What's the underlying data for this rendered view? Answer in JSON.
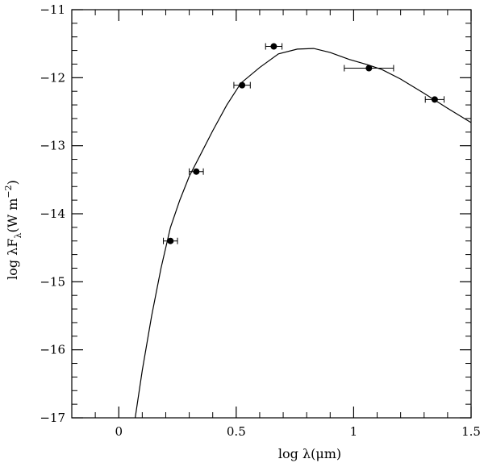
{
  "chart_data": {
    "type": "scatter",
    "xlabel": "log λ(μm)",
    "ylabel": "log λF",
    "ylabel_sub": "λ",
    "ylabel_unit": "(W m",
    "ylabel_exp": "−2",
    "ylabel_close": ")",
    "xlim": [
      -0.2,
      1.5
    ],
    "ylim": [
      -17,
      -11
    ],
    "x_ticks": [
      {
        "value": 0,
        "label": "0"
      },
      {
        "value": 0.5,
        "label": "0.5"
      },
      {
        "value": 1,
        "label": "1"
      },
      {
        "value": 1.5,
        "label": "1.5"
      }
    ],
    "x_minor_step": 0.1,
    "y_ticks": [
      {
        "value": -11,
        "label": "−11"
      },
      {
        "value": -12,
        "label": "−12"
      },
      {
        "value": -13,
        "label": "−13"
      },
      {
        "value": -14,
        "label": "−14"
      },
      {
        "value": -15,
        "label": "−15"
      },
      {
        "value": -16,
        "label": "−16"
      },
      {
        "value": -17,
        "label": "−17"
      }
    ],
    "y_minor_step": 0.2,
    "grid": false,
    "points": [
      {
        "x": 0.22,
        "y": -14.4,
        "xerr": 0.03
      },
      {
        "x": 0.33,
        "y": -13.38,
        "xerr": 0.03
      },
      {
        "x": 0.525,
        "y": -12.11,
        "xerr": 0.035
      },
      {
        "x": 0.66,
        "y": -11.54,
        "xerr": 0.035
      },
      {
        "x": 1.065,
        "y": -11.86,
        "xerr": 0.105
      },
      {
        "x": 1.345,
        "y": -12.32,
        "xerr": 0.04
      }
    ],
    "model_curve": [
      [
        0.07,
        -17.0
      ],
      [
        0.1,
        -16.3
      ],
      [
        0.14,
        -15.5
      ],
      [
        0.18,
        -14.8
      ],
      [
        0.22,
        -14.2
      ],
      [
        0.26,
        -13.8
      ],
      [
        0.3,
        -13.45
      ],
      [
        0.345,
        -13.15
      ],
      [
        0.4,
        -12.78
      ],
      [
        0.46,
        -12.4
      ],
      [
        0.52,
        -12.08
      ],
      [
        0.6,
        -11.85
      ],
      [
        0.68,
        -11.65
      ],
      [
        0.76,
        -11.58
      ],
      [
        0.83,
        -11.57
      ],
      [
        0.9,
        -11.63
      ],
      [
        0.98,
        -11.73
      ],
      [
        1.06,
        -11.81
      ],
      [
        1.12,
        -11.88
      ],
      [
        1.2,
        -12.02
      ],
      [
        1.3,
        -12.23
      ],
      [
        1.4,
        -12.45
      ],
      [
        1.5,
        -12.66
      ]
    ]
  }
}
